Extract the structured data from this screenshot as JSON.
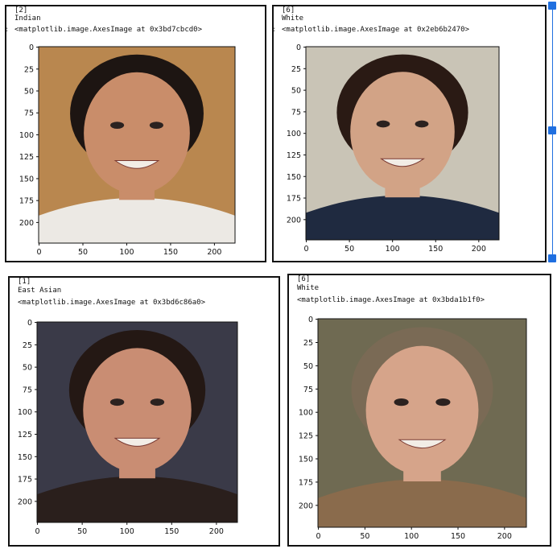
{
  "cells": [
    {
      "index": "[2]",
      "label": "Indian",
      "repr": "<matplotlib.image.AxesImage at 0x3bd7cbcd0>",
      "prompt": ":",
      "yticks": [
        "0",
        "25",
        "50",
        "75",
        "100",
        "125",
        "150",
        "175",
        "200"
      ],
      "xticks": [
        "0",
        "50",
        "100",
        "150",
        "200"
      ],
      "bg": "#b9874f",
      "skin": "#c98d6a",
      "hair": "#1d1512",
      "shirt": "#ece9e4"
    },
    {
      "index": "[6]",
      "label": "White",
      "repr": "<matplotlib.image.AxesImage at 0x2eb6b2470>",
      "prompt": ":",
      "yticks": [
        "0",
        "25",
        "50",
        "75",
        "100",
        "125",
        "150",
        "175",
        "200"
      ],
      "xticks": [
        "0",
        "50",
        "100",
        "150",
        "200"
      ],
      "bg": "#c9c4b6",
      "skin": "#d2a386",
      "hair": "#2a1a14",
      "shirt": "#1f2a40"
    },
    {
      "index": "[1]",
      "label": "East Asian",
      "repr": "<matplotlib.image.AxesImage at 0x3bd6c86a0>",
      "prompt": "",
      "yticks": [
        "0",
        "25",
        "50",
        "75",
        "100",
        "125",
        "150",
        "175",
        "200"
      ],
      "xticks": [
        "0",
        "50",
        "100",
        "150",
        "200"
      ],
      "bg": "#3a3a48",
      "skin": "#c98d73",
      "hair": "#241814",
      "shirt": "#2a1f1c"
    },
    {
      "index": "[6]",
      "label": "White",
      "repr": "<matplotlib.image.AxesImage at 0x3bda1b1f0>",
      "prompt": "",
      "yticks": [
        "0",
        "25",
        "50",
        "75",
        "100",
        "125",
        "150",
        "175",
        "200"
      ],
      "xticks": [
        "0",
        "50",
        "100",
        "150",
        "200"
      ],
      "bg": "#6f6a52",
      "skin": "#d6a48a",
      "hair": "#7a6a55",
      "shirt": "#8a6b4c"
    }
  ]
}
